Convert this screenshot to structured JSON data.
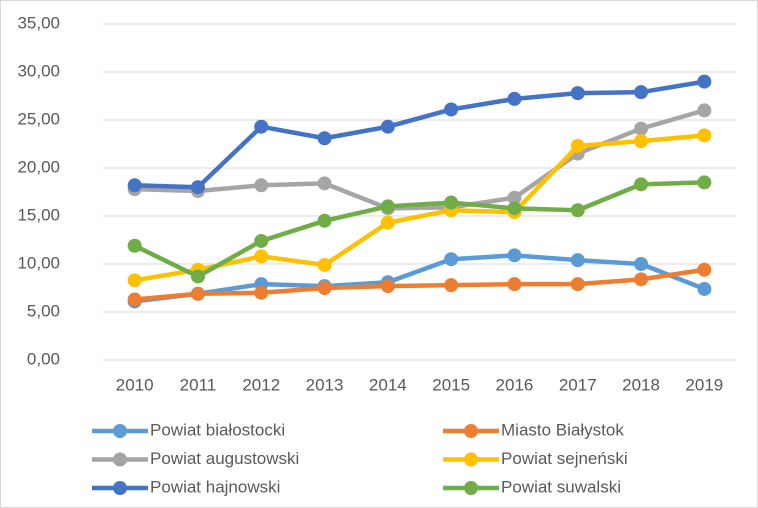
{
  "chart_data": {
    "type": "line",
    "categories": [
      "2010",
      "2011",
      "2012",
      "2013",
      "2014",
      "2015",
      "2016",
      "2017",
      "2018",
      "2019"
    ],
    "series": [
      {
        "name": "Powiat białostocki",
        "color": "#5b9bd5",
        "values": [
          6.1,
          6.9,
          7.9,
          7.7,
          8.1,
          10.5,
          10.9,
          10.4,
          10.0,
          7.4
        ]
      },
      {
        "name": "Miasto Białystok",
        "color": "#ed7d31",
        "values": [
          6.3,
          6.9,
          7.0,
          7.5,
          7.7,
          7.8,
          7.9,
          7.9,
          8.4,
          9.4
        ]
      },
      {
        "name": "Powiat augustowski",
        "color": "#a5a5a5",
        "values": [
          17.8,
          17.6,
          18.2,
          18.4,
          15.8,
          15.9,
          16.9,
          21.5,
          24.1,
          26.0
        ]
      },
      {
        "name": "Powiat sejneński",
        "color": "#ffc000",
        "values": [
          8.3,
          9.4,
          10.8,
          9.9,
          14.3,
          15.6,
          15.4,
          22.3,
          22.8,
          23.4
        ]
      },
      {
        "name": "Powiat hajnowski",
        "color": "#4472c4",
        "values": [
          18.2,
          18.0,
          24.3,
          23.1,
          24.3,
          26.1,
          27.2,
          27.8,
          27.9,
          29.0
        ]
      },
      {
        "name": "Powiat suwalski",
        "color": "#70ad47",
        "values": [
          11.9,
          8.7,
          12.4,
          14.5,
          16.0,
          16.4,
          15.8,
          15.6,
          18.3,
          18.5
        ]
      }
    ],
    "ylim": [
      0,
      35
    ],
    "yticks": [
      {
        "value": 0,
        "label": "0,00"
      },
      {
        "value": 5,
        "label": "5,00"
      },
      {
        "value": 10,
        "label": "10,00"
      },
      {
        "value": 15,
        "label": "15,00"
      },
      {
        "value": 20,
        "label": "20,00"
      },
      {
        "value": 25,
        "label": "25,00"
      },
      {
        "value": 30,
        "label": "30,00"
      },
      {
        "value": 35,
        "label": "35,00"
      }
    ],
    "grid": true,
    "legend": "bottom"
  }
}
